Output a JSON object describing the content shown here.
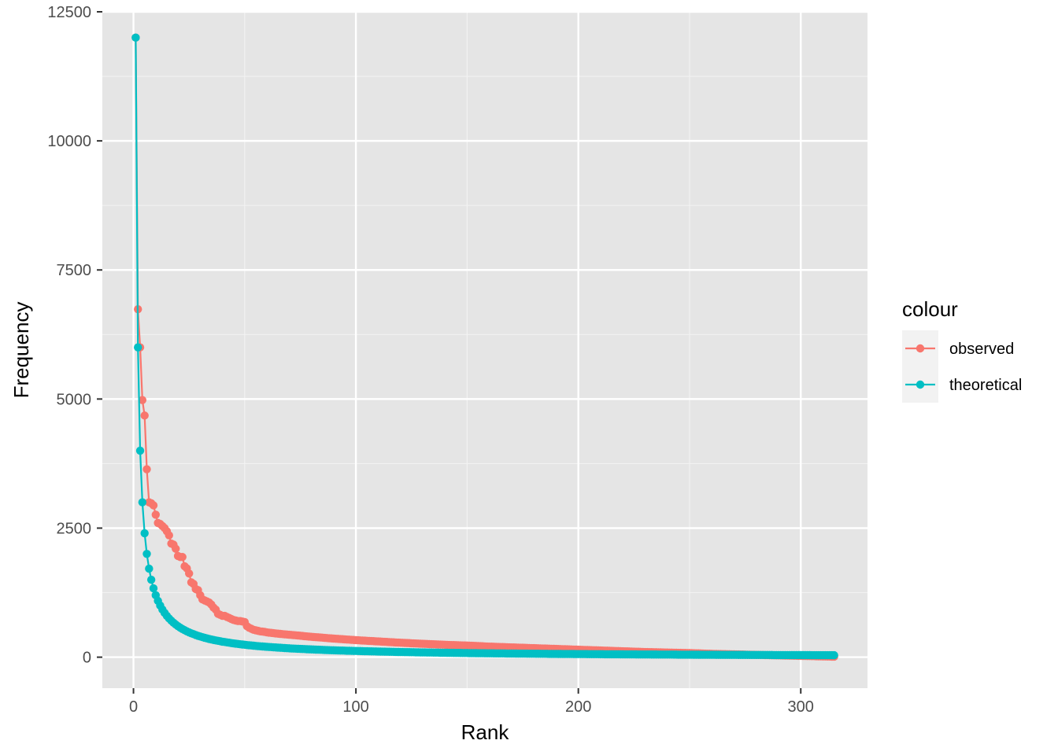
{
  "chart_data": {
    "type": "line",
    "xlabel": "Rank",
    "ylabel": "Frequency",
    "xlim": [
      -14,
      330
    ],
    "ylim": [
      -600,
      12500
    ],
    "x_ticks": [
      0,
      100,
      200,
      300
    ],
    "y_ticks": [
      0,
      2500,
      5000,
      7500,
      10000,
      12500
    ],
    "x_tick_labels": [
      "0",
      "100",
      "200",
      "300"
    ],
    "y_tick_labels": [
      "0",
      "2500",
      "5000",
      "7500",
      "10000",
      "12500"
    ],
    "grid": true,
    "legend": {
      "title": "colour",
      "position": "right"
    },
    "markers": true,
    "panel_background": "#e5e5e5",
    "series": [
      {
        "name": "observed",
        "color": "#f8766d",
        "x": [
          1,
          2,
          3,
          4,
          5,
          6,
          7,
          8,
          9,
          10,
          11,
          12,
          13,
          14,
          15,
          16,
          17,
          18,
          19,
          20,
          21,
          22,
          23,
          24,
          25,
          26,
          27,
          28,
          29,
          30,
          31,
          32,
          33,
          34,
          35,
          36,
          37,
          38,
          39,
          40,
          41,
          42,
          43,
          44,
          45,
          46,
          47,
          48,
          49,
          50,
          51,
          52,
          53,
          54,
          55,
          56,
          57,
          58,
          59,
          60,
          62,
          65,
          70,
          75,
          80,
          90,
          100,
          110,
          120,
          130,
          140,
          150,
          160,
          170,
          180,
          190,
          200,
          210,
          220,
          230,
          240,
          250,
          260,
          270,
          280,
          290,
          300,
          305,
          310,
          315
        ],
        "y": [
          12000,
          6740,
          6000,
          4980,
          4680,
          3640,
          3000,
          2980,
          2940,
          2760,
          2600,
          2580,
          2540,
          2500,
          2440,
          2360,
          2200,
          2180,
          2100,
          1960,
          1940,
          1940,
          1760,
          1720,
          1620,
          1450,
          1420,
          1320,
          1300,
          1200,
          1120,
          1100,
          1080,
          1060,
          1020,
          960,
          920,
          840,
          820,
          800,
          800,
          780,
          760,
          740,
          720,
          710,
          700,
          700,
          690,
          680,
          600,
          570,
          550,
          530,
          520,
          510,
          500,
          495,
          490,
          480,
          470,
          455,
          435,
          415,
          395,
          360,
          330,
          305,
          280,
          260,
          240,
          225,
          205,
          190,
          175,
          160,
          145,
          130,
          115,
          100,
          90,
          80,
          65,
          55,
          45,
          35,
          25,
          20,
          15,
          10
        ]
      },
      {
        "name": "theoretical",
        "color": "#00bfc4",
        "x": [
          1,
          2,
          3,
          4,
          5,
          6,
          7,
          8,
          9,
          10,
          11,
          12,
          13,
          14,
          15,
          16,
          17,
          18,
          19,
          20,
          22,
          24,
          26,
          28,
          30,
          33,
          36,
          40,
          45,
          50,
          55,
          60,
          70,
          80,
          90,
          100,
          110,
          120,
          130,
          140,
          150,
          160,
          170,
          180,
          190,
          200,
          210,
          220,
          230,
          240,
          250,
          260,
          270,
          280,
          290,
          300,
          310,
          315
        ],
        "y": [
          12000,
          6000,
          4000,
          3000,
          2400,
          2000,
          1714,
          1500,
          1333,
          1200,
          1091,
          1000,
          923,
          857,
          800,
          750,
          706,
          667,
          632,
          600,
          545,
          500,
          462,
          429,
          400,
          364,
          333,
          300,
          267,
          240,
          218,
          200,
          171,
          150,
          133,
          120,
          109,
          100,
          92,
          86,
          80,
          75,
          71,
          67,
          63,
          60,
          57,
          55,
          52,
          50,
          48,
          46,
          44,
          43,
          41,
          40,
          39,
          38
        ]
      }
    ]
  }
}
